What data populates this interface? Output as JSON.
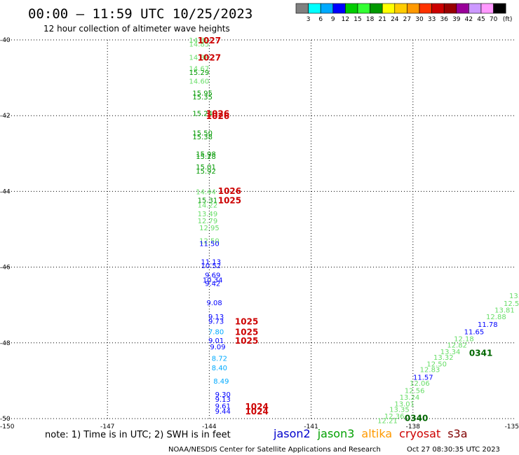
{
  "title": "00:00 – 11:59 UTC 10/25/2023",
  "subtitle": "12 hour collection of altimeter wave heights",
  "note": "note: 1) Time is in UTC; 2) SWH is in feet",
  "credit": "NOAA/NESDIS Center for Satellite Applications and Research",
  "timestamp": "Oct 27 08:30:35 UTC 2023",
  "satellites": [
    {
      "name": "jason2",
      "color": "#0000cc"
    },
    {
      "name": "jason3",
      "color": "#00a000"
    },
    {
      "name": "altika",
      "color": "#ff9900"
    },
    {
      "name": "cryosat",
      "color": "#cc0000"
    },
    {
      "name": "s3a",
      "color": "#800000"
    }
  ],
  "colorbar": {
    "unit": "(ft)",
    "colors": [
      "#808080",
      "#00ffff",
      "#00aaff",
      "#0000ff",
      "#00cc00",
      "#33ff33",
      "#009900",
      "#ffff00",
      "#ffcc00",
      "#ff9900",
      "#ff3300",
      "#cc0000",
      "#990000",
      "#990099",
      "#cc99ff",
      "#ff99ff",
      "#000000"
    ],
    "labels": [
      "3",
      "6",
      "9",
      "12",
      "15",
      "18",
      "21",
      "24",
      "27",
      "30",
      "33",
      "36",
      "39",
      "42",
      "45",
      "70"
    ]
  },
  "chart_data": {
    "type": "scatter",
    "xlabel": "",
    "ylabel": "",
    "xlim": [
      -150,
      -135
    ],
    "ylim": [
      -50,
      -40
    ],
    "x_tick_labels": [
      "-150",
      "-147",
      "-144",
      "-141",
      "-138",
      "-135"
    ],
    "y_tick_labels": [
      "-40",
      "-42",
      "-44",
      "-46",
      "-48",
      "-50"
    ],
    "x_ticks": [
      -147,
      -144,
      -141,
      -138
    ],
    "y_ticks": [
      -40,
      -42,
      -44,
      -46,
      -48,
      -50
    ],
    "grid": true,
    "wave_heights": [
      {
        "lon": -144.3,
        "lat": -40.0,
        "text": "14.89",
        "color": "#66dd66"
      },
      {
        "lon": -144.3,
        "lat": -40.1,
        "text": "14.85",
        "color": "#66dd66"
      },
      {
        "lon": -144.3,
        "lat": -40.45,
        "text": "14.88",
        "color": "#66dd66"
      },
      {
        "lon": -144.3,
        "lat": -40.75,
        "text": "14.67",
        "color": "#66dd66"
      },
      {
        "lon": -144.3,
        "lat": -40.85,
        "text": "15.29",
        "color": "#009900"
      },
      {
        "lon": -144.3,
        "lat": -41.08,
        "text": "14.60",
        "color": "#66dd66"
      },
      {
        "lon": -144.2,
        "lat": -41.4,
        "text": "15.95",
        "color": "#009900"
      },
      {
        "lon": -144.2,
        "lat": -41.5,
        "text": "15.35",
        "color": "#009900"
      },
      {
        "lon": -144.2,
        "lat": -41.93,
        "text": "15.24",
        "color": "#009900"
      },
      {
        "lon": -144.2,
        "lat": -42.45,
        "text": "15.50",
        "color": "#009900"
      },
      {
        "lon": -144.2,
        "lat": -42.55,
        "text": "15.38",
        "color": "#009900"
      },
      {
        "lon": -144.1,
        "lat": -43.0,
        "text": "15.98",
        "color": "#009900"
      },
      {
        "lon": -144.1,
        "lat": -43.07,
        "text": "15.28",
        "color": "#009900"
      },
      {
        "lon": -144.1,
        "lat": -43.35,
        "text": "15.01",
        "color": "#009900"
      },
      {
        "lon": -144.1,
        "lat": -43.46,
        "text": "15.92",
        "color": "#009900"
      },
      {
        "lon": -144.1,
        "lat": -44.0,
        "text": "14.44",
        "color": "#66dd66"
      },
      {
        "lon": -144.05,
        "lat": -44.22,
        "text": "15.31",
        "color": "#009900"
      },
      {
        "lon": -144.05,
        "lat": -44.35,
        "text": "14.22",
        "color": "#66dd66"
      },
      {
        "lon": -144.05,
        "lat": -44.58,
        "text": "13.49",
        "color": "#66dd66"
      },
      {
        "lon": -144.05,
        "lat": -44.77,
        "text": "12.79",
        "color": "#66dd66"
      },
      {
        "lon": -144.0,
        "lat": -44.95,
        "text": "12.95",
        "color": "#66dd66"
      },
      {
        "lon": -144.0,
        "lat": -45.3,
        "text": "12.50",
        "color": "#66dd66"
      },
      {
        "lon": -144.0,
        "lat": -45.37,
        "text": "11.50",
        "color": "#0000ff"
      },
      {
        "lon": -143.95,
        "lat": -45.85,
        "text": "11.13",
        "color": "#0000ff"
      },
      {
        "lon": -143.95,
        "lat": -45.95,
        "text": "10.52",
        "color": "#0000ff"
      },
      {
        "lon": -143.9,
        "lat": -46.2,
        "text": "9.69",
        "color": "#0000ff"
      },
      {
        "lon": -143.9,
        "lat": -46.33,
        "text": "10.34",
        "color": "#0000ff"
      },
      {
        "lon": -143.9,
        "lat": -46.42,
        "text": "9.42",
        "color": "#0000ff"
      },
      {
        "lon": -143.85,
        "lat": -46.93,
        "text": "9.08",
        "color": "#0000ff"
      },
      {
        "lon": -143.8,
        "lat": -47.3,
        "text": "9.13",
        "color": "#0000ff"
      },
      {
        "lon": -143.8,
        "lat": -47.42,
        "text": "9.73",
        "color": "#0000ff"
      },
      {
        "lon": -143.8,
        "lat": -47.7,
        "text": "7.80",
        "color": "#00aaff"
      },
      {
        "lon": -143.8,
        "lat": -47.93,
        "text": "9.01",
        "color": "#0000ff"
      },
      {
        "lon": -143.75,
        "lat": -48.1,
        "text": "9.09",
        "color": "#0000ff"
      },
      {
        "lon": -143.7,
        "lat": -48.4,
        "text": "8.72",
        "color": "#00aaff"
      },
      {
        "lon": -143.7,
        "lat": -48.65,
        "text": "8.40",
        "color": "#00aaff"
      },
      {
        "lon": -143.65,
        "lat": -49.0,
        "text": "8.49",
        "color": "#00aaff"
      },
      {
        "lon": -143.6,
        "lat": -49.35,
        "text": "9.30",
        "color": "#0000ff"
      },
      {
        "lon": -143.6,
        "lat": -49.48,
        "text": "9.13",
        "color": "#0000ff"
      },
      {
        "lon": -143.6,
        "lat": -49.66,
        "text": "9.61",
        "color": "#0000ff"
      },
      {
        "lon": -143.6,
        "lat": -49.8,
        "text": "9.44",
        "color": "#0000ff"
      },
      {
        "lon": -135.0,
        "lat": -46.75,
        "text": "13.",
        "color": "#66dd66"
      },
      {
        "lon": -135.1,
        "lat": -46.95,
        "text": "12.5",
        "color": "#66dd66"
      },
      {
        "lon": -135.3,
        "lat": -47.13,
        "text": "13.81",
        "color": "#66dd66"
      },
      {
        "lon": -135.55,
        "lat": -47.3,
        "text": "12.88",
        "color": "#66dd66"
      },
      {
        "lon": -135.8,
        "lat": -47.5,
        "text": "11.78",
        "color": "#0000ff"
      },
      {
        "lon": -136.2,
        "lat": -47.7,
        "text": "11.65",
        "color": "#0000ff"
      },
      {
        "lon": -136.5,
        "lat": -47.88,
        "text": "12.18",
        "color": "#66dd66"
      },
      {
        "lon": -136.7,
        "lat": -48.05,
        "text": "12.82",
        "color": "#66dd66"
      },
      {
        "lon": -136.9,
        "lat": -48.23,
        "text": "13.34",
        "color": "#66dd66"
      },
      {
        "lon": -137.1,
        "lat": -48.37,
        "text": "13.32",
        "color": "#66dd66"
      },
      {
        "lon": -137.3,
        "lat": -48.55,
        "text": "12.50",
        "color": "#66dd66"
      },
      {
        "lon": -137.5,
        "lat": -48.7,
        "text": "12.83",
        "color": "#66dd66"
      },
      {
        "lon": -137.7,
        "lat": -48.9,
        "text": "11.57",
        "color": "#0000ff"
      },
      {
        "lon": -137.8,
        "lat": -49.06,
        "text": "12.06",
        "color": "#66dd66"
      },
      {
        "lon": -137.95,
        "lat": -49.25,
        "text": "12.56",
        "color": "#66dd66"
      },
      {
        "lon": -138.1,
        "lat": -49.43,
        "text": "13.24",
        "color": "#66dd66"
      },
      {
        "lon": -138.25,
        "lat": -49.6,
        "text": "13.01",
        "color": "#66dd66"
      },
      {
        "lon": -138.4,
        "lat": -49.75,
        "text": "13.35",
        "color": "#66dd66"
      },
      {
        "lon": -138.55,
        "lat": -49.93,
        "text": "12.36",
        "color": "#66dd66"
      },
      {
        "lon": -138.75,
        "lat": -50.05,
        "text": "12.21",
        "color": "#66dd66"
      }
    ],
    "time_tags": [
      {
        "lon": -144.0,
        "lat": -40.0,
        "text": "1027",
        "color": "#cc0000"
      },
      {
        "lon": -144.0,
        "lat": -40.45,
        "text": "1027",
        "color": "#cc0000"
      },
      {
        "lon": -143.75,
        "lat": -41.93,
        "text": "1026",
        "color": "#cc0000"
      },
      {
        "lon": -143.75,
        "lat": -42.0,
        "text": "1026",
        "color": "#cc0000"
      },
      {
        "lon": -143.4,
        "lat": -43.97,
        "text": "1026",
        "color": "#cc0000"
      },
      {
        "lon": -143.4,
        "lat": -44.22,
        "text": "1025",
        "color": "#cc0000"
      },
      {
        "lon": -142.9,
        "lat": -47.42,
        "text": "1025",
        "color": "#cc0000"
      },
      {
        "lon": -142.9,
        "lat": -47.7,
        "text": "1025",
        "color": "#cc0000"
      },
      {
        "lon": -142.9,
        "lat": -47.93,
        "text": "1025",
        "color": "#cc0000"
      },
      {
        "lon": -142.6,
        "lat": -49.67,
        "text": "1024",
        "color": "#cc0000"
      },
      {
        "lon": -142.6,
        "lat": -49.8,
        "text": "1024",
        "color": "#cc0000"
      },
      {
        "lon": -136.0,
        "lat": -48.25,
        "text": "0341",
        "color": "#006600"
      },
      {
        "lon": -137.9,
        "lat": -49.97,
        "text": "0340",
        "color": "#006600"
      }
    ]
  }
}
